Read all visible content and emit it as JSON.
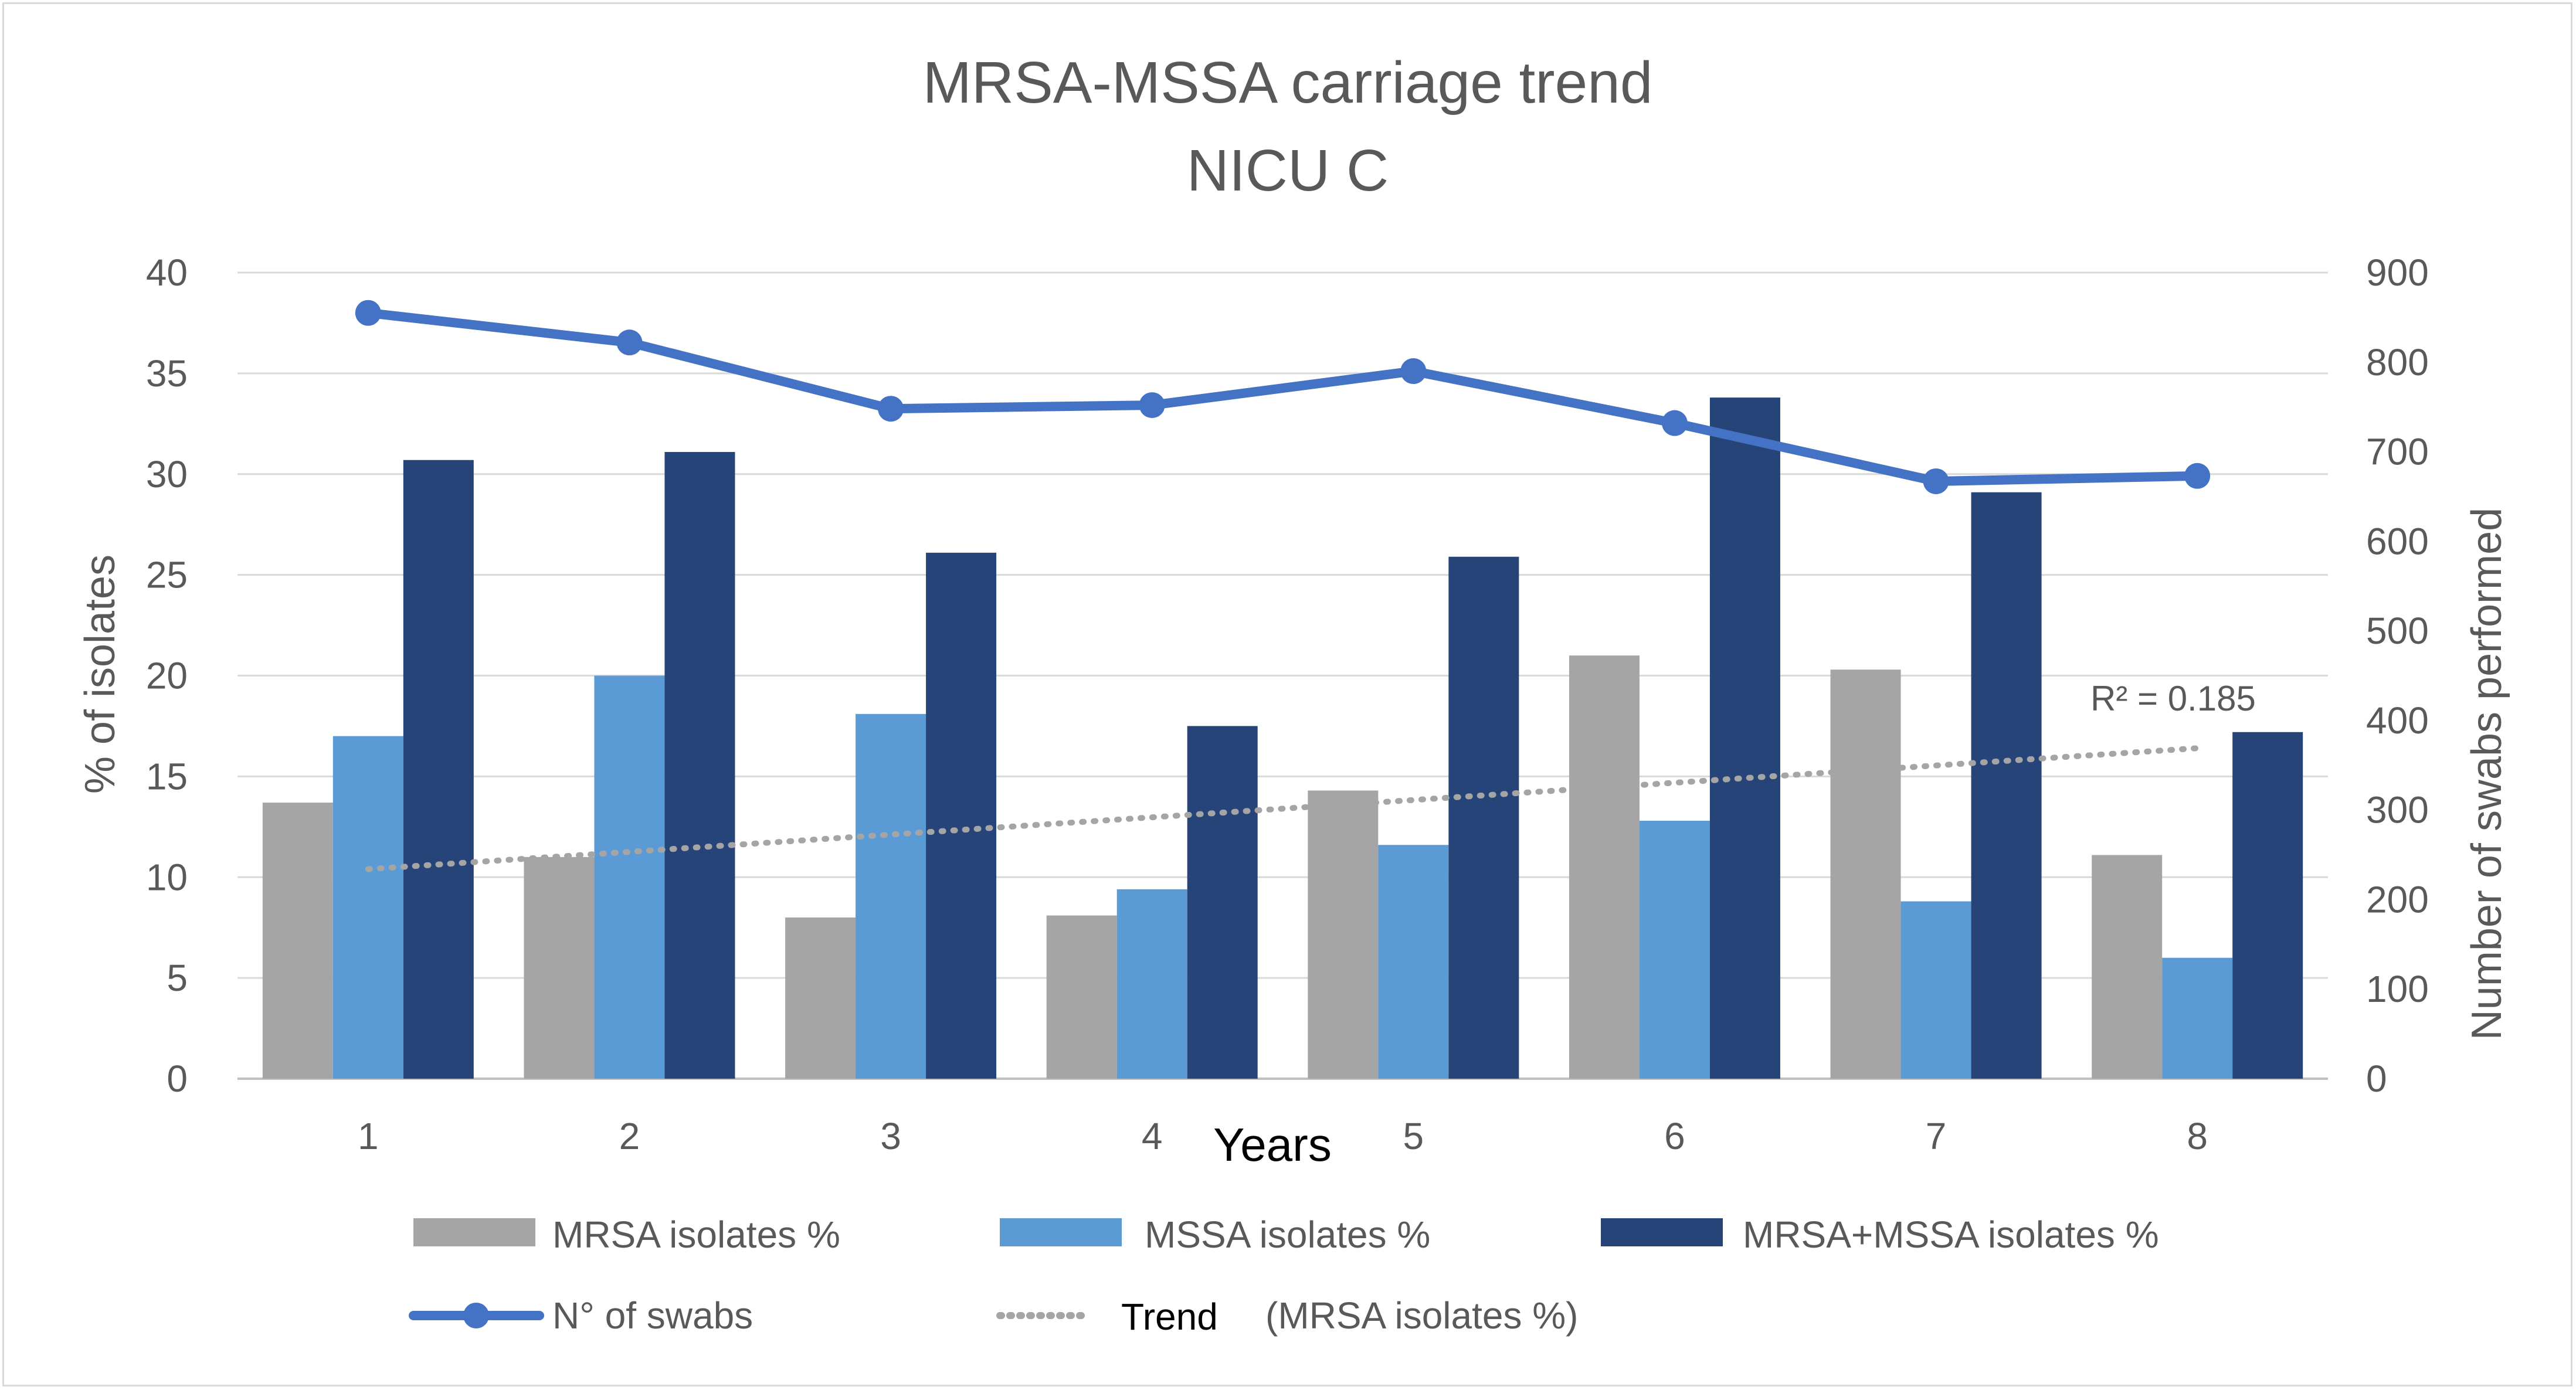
{
  "chart_data": {
    "type": "bar",
    "title": "MRSA-MSSA carriage trend",
    "subtitle": "NICU C",
    "categories": [
      "1",
      "2",
      "3",
      "4",
      "5",
      "6",
      "7",
      "8"
    ],
    "xlabel": "Years",
    "ylabel": "% of isolates",
    "y2label": "Number of swabs performed",
    "ylim": [
      0,
      40
    ],
    "y2lim": [
      0,
      900
    ],
    "yticks": [
      "0",
      "5",
      "10",
      "15",
      "20",
      "25",
      "30",
      "35",
      "40"
    ],
    "y2ticks": [
      "0",
      "100",
      "200",
      "300",
      "400",
      "500",
      "600",
      "700",
      "800",
      "900"
    ],
    "grid": true,
    "series": [
      {
        "name": "MRSA isolates %",
        "kind": "bar",
        "axis": "left",
        "color": "#a5a5a5",
        "values": [
          13.7,
          11.0,
          8.0,
          8.1,
          14.3,
          21.0,
          20.3,
          11.1
        ]
      },
      {
        "name": "MSSA isolates %",
        "kind": "bar",
        "axis": "left",
        "color": "#5b9bd5",
        "values": [
          17.0,
          20.0,
          18.1,
          9.4,
          11.6,
          12.8,
          8.8,
          6.0
        ]
      },
      {
        "name": "MRSA+MSSA isolates %",
        "kind": "bar",
        "axis": "left",
        "color": "#264478",
        "values": [
          30.7,
          31.1,
          26.1,
          17.5,
          25.9,
          33.8,
          29.1,
          17.2
        ]
      },
      {
        "name": "N° of swabs",
        "kind": "line",
        "axis": "right",
        "color": "#4472c4",
        "values": [
          855,
          822,
          748,
          752,
          790,
          732,
          667,
          673
        ]
      }
    ],
    "trendline": {
      "label": "Trend",
      "of_series": "(MRSA isolates %)",
      "color": "#a5a5a5",
      "start": 10.4,
      "end": 16.4,
      "r2_label": "R² = 0.185"
    },
    "legend_position": "bottom"
  }
}
